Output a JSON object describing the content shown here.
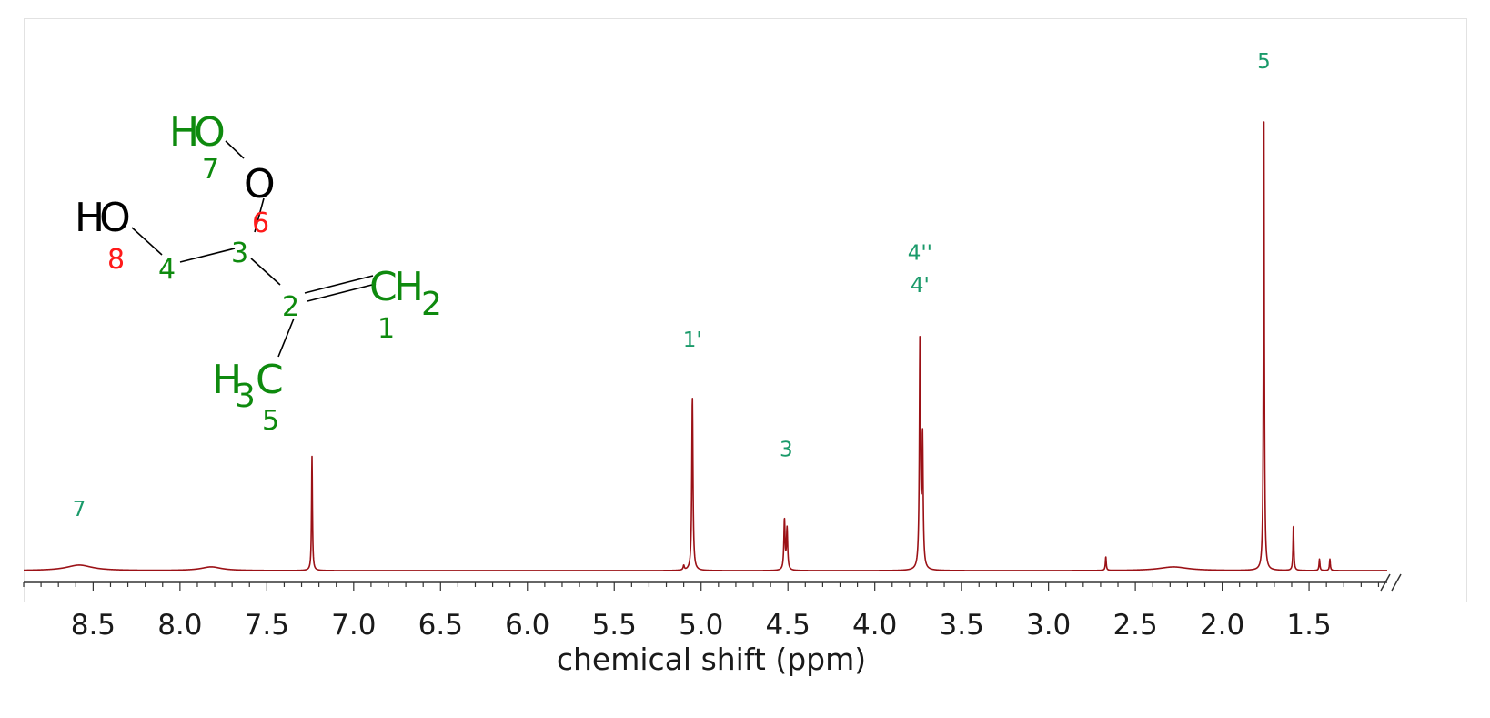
{
  "chart_data": {
    "type": "line",
    "xlabel": "chemical shift (ppm)",
    "ylabel": "",
    "xlim": [
      8.9,
      1.05
    ],
    "x_reversed": true,
    "x_ticks": [
      8.5,
      8.0,
      7.5,
      7.0,
      6.5,
      6.0,
      5.5,
      5.0,
      4.5,
      4.0,
      3.5,
      3.0,
      2.5,
      2.0,
      1.5
    ],
    "x_tick_labels": [
      "8.5",
      "8.0",
      "7.5",
      "7.0",
      "6.5",
      "6.0",
      "5.5",
      "5.0",
      "4.5",
      "4.0",
      "3.5",
      "3.0",
      "2.5",
      "2.0",
      "1.5"
    ],
    "grid": false,
    "line_color": "#9b1116",
    "label_color": "#1a9a6a",
    "peaks": [
      {
        "shift": 8.58,
        "height": 0.012,
        "width": 0.09
      },
      {
        "shift": 7.82,
        "height": 0.008,
        "width": 0.07
      },
      {
        "shift": 7.24,
        "height": 0.25,
        "width": 0.003
      },
      {
        "shift": 5.05,
        "height": 0.38,
        "width": 0.004
      },
      {
        "shift": 5.1,
        "height": 0.01,
        "width": 0.004
      },
      {
        "shift": 4.52,
        "height": 0.11,
        "width": 0.004
      },
      {
        "shift": 4.505,
        "height": 0.09,
        "width": 0.004
      },
      {
        "shift": 3.74,
        "height": 0.5,
        "width": 0.004
      },
      {
        "shift": 3.725,
        "height": 0.28,
        "width": 0.004
      },
      {
        "shift": 2.67,
        "height": 0.03,
        "width": 0.003
      },
      {
        "shift": 2.28,
        "height": 0.008,
        "width": 0.1
      },
      {
        "shift": 1.76,
        "height": 1.0,
        "width": 0.003
      },
      {
        "shift": 1.59,
        "height": 0.1,
        "width": 0.003
      },
      {
        "shift": 1.44,
        "height": 0.025,
        "width": 0.003
      },
      {
        "shift": 1.38,
        "height": 0.025,
        "width": 0.003
      }
    ],
    "annotations": [
      {
        "text": "7",
        "shift": 8.58,
        "level": 0.12
      },
      {
        "text": "1'",
        "shift": 5.05,
        "level": 0.49
      },
      {
        "text": "3",
        "shift": 4.51,
        "level": 0.25
      },
      {
        "text": "4''",
        "shift": 3.74,
        "level": 0.68
      },
      {
        "text": "4'",
        "shift": 3.74,
        "level": 0.61
      },
      {
        "text": "5",
        "shift": 1.76,
        "level": 1.1
      }
    ]
  },
  "structure": {
    "ho_top": "HO",
    "o_mid": "O",
    "ho_left": "HO",
    "ch": "CH",
    "ch_sub": "2",
    "h3c_h": "H",
    "h3c_sub": "3",
    "h3c_c": "C",
    "num_7": "7",
    "num_6": "6",
    "num_8": "8",
    "num_4": "4",
    "num_3": "3",
    "num_2": "2",
    "num_1": "1",
    "num_5": "5",
    "green": "#0e8a0e",
    "red": "#ff1a1a",
    "black": "#000000"
  }
}
